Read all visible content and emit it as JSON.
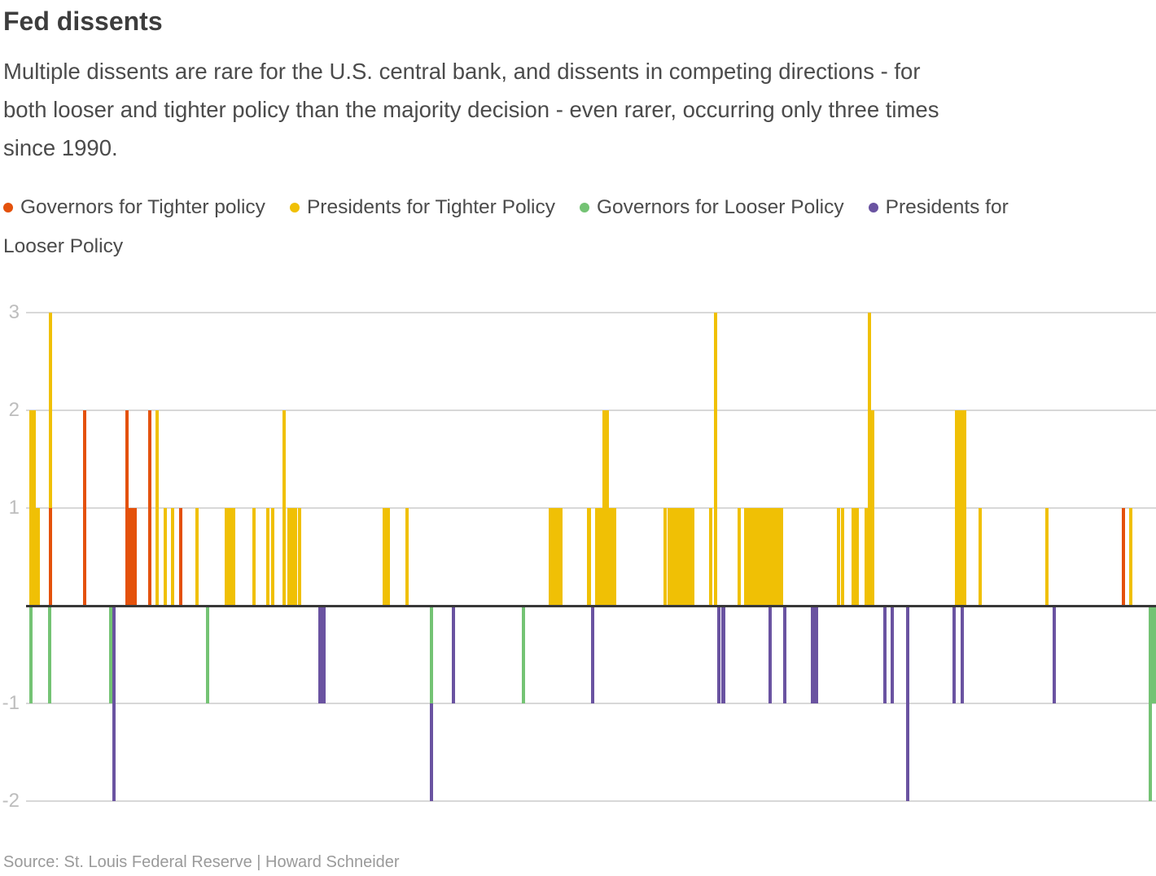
{
  "header": {
    "title": "Fed dissents",
    "subtitle_lines": [
      "Multiple dissents are rare for the U.S. central bank, and dissents in competing directions - for",
      "both looser and tighter policy than the majority decision - even rarer, occurring only three times",
      "since 1990."
    ]
  },
  "footer": {
    "source": "Source: St. Louis Federal Reserve | Howard Schneider"
  },
  "chart_data": {
    "type": "bar",
    "title": "Fed dissents",
    "xlabel": "",
    "ylabel": "",
    "x_axis_labels_visible": false,
    "yticks": [
      3,
      2,
      1,
      -1,
      -2
    ],
    "ylim": [
      -2.4,
      3
    ],
    "baseline": 0,
    "grid": true,
    "legend_position": "top",
    "series": [
      {
        "key": "GT",
        "label": "Governors for Tighter policy",
        "color": "#e4510b"
      },
      {
        "key": "PT",
        "label": "Presidents for Tighter Policy",
        "color": "#f0c005"
      },
      {
        "key": "GL",
        "label": "Governors for Looser Policy",
        "color": "#74c374"
      },
      {
        "key": "PL",
        "label": "Presidents for Looser Policy",
        "color": "#6a53a1",
        "legend_break_after": "Presidents for"
      }
    ],
    "bar_format": [
      "x_px",
      "series_key",
      "v_from",
      "v_to"
    ],
    "bars": [
      [
        38,
        "PT",
        0,
        2
      ],
      [
        42,
        "PT",
        0,
        2
      ],
      [
        46.5,
        "PT",
        0,
        1
      ],
      [
        62,
        "GT",
        0,
        1
      ],
      [
        62,
        "PT",
        1,
        3
      ],
      [
        104,
        "GT",
        0,
        2
      ],
      [
        156,
        "GT",
        0,
        2
      ],
      [
        159.5,
        "GT",
        0,
        1
      ],
      [
        162.5,
        "GT",
        0,
        1
      ],
      [
        165.5,
        "GT",
        0,
        1
      ],
      [
        184,
        "GT",
        0,
        2
      ],
      [
        193,
        "PT",
        0,
        2
      ],
      [
        203,
        "PT",
        0,
        1
      ],
      [
        212,
        "PT",
        0,
        1
      ],
      [
        222,
        "GT",
        0,
        1
      ],
      [
        242,
        "PT",
        0,
        1
      ],
      [
        278,
        "PT",
        0,
        1
      ],
      [
        282.5,
        "PT",
        0,
        1
      ],
      [
        287,
        "PT",
        0,
        1
      ],
      [
        312,
        "PT",
        0,
        1
      ],
      [
        329,
        "PT",
        0,
        1
      ],
      [
        335,
        "PT",
        0,
        1
      ],
      [
        349,
        "PT",
        0,
        2
      ],
      [
        355,
        "PT",
        0,
        1
      ],
      [
        359,
        "PT",
        0,
        1
      ],
      [
        362.5,
        "PT",
        0,
        1
      ],
      [
        368,
        "PT",
        0,
        1
      ],
      [
        472,
        "PT",
        0,
        1
      ],
      [
        476.5,
        "PT",
        0,
        1
      ],
      [
        500,
        "PT",
        0,
        1
      ],
      [
        676,
        "PT",
        0,
        1
      ],
      [
        680.5,
        "PT",
        0,
        1
      ],
      [
        684.5,
        "PT",
        0,
        1
      ],
      [
        689,
        "PT",
        0,
        1
      ],
      [
        723.5,
        "PT",
        0,
        1
      ],
      [
        733,
        "PT",
        0,
        1
      ],
      [
        737.5,
        "PT",
        0,
        1
      ],
      [
        742,
        "PT",
        0,
        2
      ],
      [
        746,
        "PT",
        0,
        2
      ],
      [
        750,
        "PT",
        0,
        1
      ],
      [
        754.5,
        "PT",
        0,
        1
      ],
      [
        817,
        "PT",
        0,
        1
      ],
      [
        822,
        "PT",
        0,
        1
      ],
      [
        826.5,
        "PT",
        0,
        1
      ],
      [
        831,
        "PT",
        0,
        1
      ],
      [
        835,
        "PT",
        0,
        1
      ],
      [
        839,
        "PT",
        0,
        1
      ],
      [
        843,
        "PT",
        0,
        1
      ],
      [
        847,
        "PT",
        0,
        1
      ],
      [
        850.5,
        "PT",
        0,
        1
      ],
      [
        873,
        "PT",
        0,
        1
      ],
      [
        879,
        "PT",
        0,
        3
      ],
      [
        908,
        "PT",
        0,
        1
      ],
      [
        916,
        "PT",
        0,
        1
      ],
      [
        920.5,
        "PT",
        0,
        1
      ],
      [
        925,
        "PT",
        0,
        1
      ],
      [
        929,
        "PT",
        0,
        1
      ],
      [
        933,
        "PT",
        0,
        1
      ],
      [
        937,
        "PT",
        0,
        1
      ],
      [
        941,
        "PT",
        0,
        1
      ],
      [
        945,
        "PT",
        0,
        1
      ],
      [
        949,
        "PT",
        0,
        1
      ],
      [
        952.5,
        "PT",
        0,
        1
      ],
      [
        956,
        "PT",
        0,
        1
      ],
      [
        960,
        "PT",
        0,
        1
      ],
      [
        1030,
        "PT",
        0,
        1
      ],
      [
        1035,
        "PT",
        0,
        1
      ],
      [
        1048,
        "PT",
        0,
        1
      ],
      [
        1052.5,
        "PT",
        0,
        1
      ],
      [
        1064,
        "PT",
        0,
        1
      ],
      [
        1068,
        "PT",
        0,
        3
      ],
      [
        1072,
        "PT",
        0,
        2
      ],
      [
        1175.5,
        "PT",
        0,
        2
      ],
      [
        1180.5,
        "PT",
        0,
        2
      ],
      [
        1185,
        "PT",
        0,
        2
      ],
      [
        1204,
        "PT",
        0,
        1
      ],
      [
        1286,
        "PT",
        0,
        1
      ],
      [
        1380,
        "GT",
        0,
        1
      ],
      [
        1389,
        "PT",
        0,
        1
      ],
      [
        38,
        "GL",
        -1,
        0
      ],
      [
        61,
        "GL",
        -1,
        0
      ],
      [
        136,
        "GL",
        -1,
        0
      ],
      [
        140,
        "PL",
        -2,
        0
      ],
      [
        255,
        "GL",
        -1,
        0
      ],
      [
        393,
        "PL",
        -1,
        0
      ],
      [
        397.5,
        "PL",
        -1,
        0
      ],
      [
        530,
        "GL",
        -1,
        0
      ],
      [
        530,
        "PL",
        -2,
        -1
      ],
      [
        557,
        "PL",
        -1,
        0
      ],
      [
        643,
        "GL",
        -1,
        0
      ],
      [
        728,
        "PL",
        -1,
        0
      ],
      [
        883,
        "PL",
        -1,
        0
      ],
      [
        888.5,
        "PL",
        -1,
        0
      ],
      [
        946,
        "PL",
        -1,
        0
      ],
      [
        964,
        "PL",
        -1,
        0
      ],
      [
        998.5,
        "PL",
        -1,
        0
      ],
      [
        1002.5,
        "PL",
        -1,
        0
      ],
      [
        1087,
        "PL",
        -1,
        0
      ],
      [
        1096,
        "PL",
        -1,
        0
      ],
      [
        1115,
        "PL",
        -2,
        0
      ],
      [
        1172,
        "PL",
        -1,
        0
      ],
      [
        1182,
        "PL",
        -1,
        0
      ],
      [
        1295,
        "PL",
        -1,
        0
      ],
      [
        1413,
        "GL",
        -2,
        0
      ],
      [
        1417.5,
        "GL",
        -1,
        0
      ]
    ]
  }
}
